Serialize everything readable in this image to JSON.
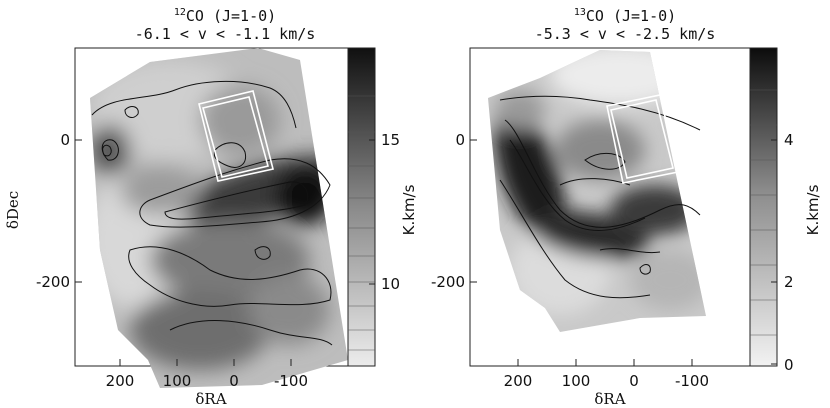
{
  "figure": {
    "panels": [
      {
        "id": "left",
        "title_isotope": "12",
        "title_molecule": "CO (J=1-0)",
        "title_range": "-6.1 < v < -1.1 km/s",
        "colorbar_label": "K.km/s",
        "colorbar_ticks": [
          "10",
          "15"
        ]
      },
      {
        "id": "right",
        "title_isotope": "13",
        "title_molecule": "CO (J=1-0)",
        "title_range": "-5.3 < v < -2.5 km/s",
        "colorbar_label": "K.km/s",
        "colorbar_ticks": [
          "0",
          "2",
          "4"
        ]
      }
    ],
    "xaxis_label": "δRA",
    "yaxis_label": "δDec",
    "x_ticks": [
      "200",
      "100",
      "0",
      "-100"
    ],
    "y_ticks": [
      "0",
      "-200"
    ],
    "colors": {
      "map_light": "#e8e8e8",
      "map_dark": "#101010",
      "contour": "#111111",
      "box": "#ffffff"
    }
  }
}
